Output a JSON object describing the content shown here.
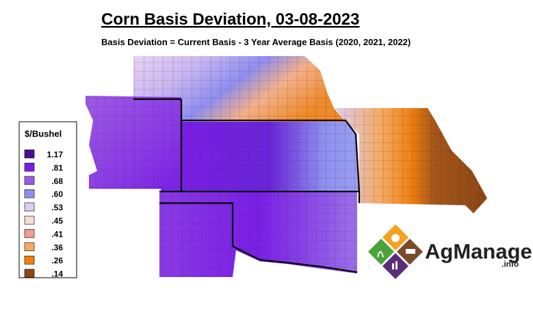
{
  "title": "Corn Basis Deviation, 03-08-2023",
  "subtitle": "Basis Deviation = Current Basis - 3 Year Average Basis (2020, 2021, 2022)",
  "legend": {
    "title": "$/Bushel",
    "items": [
      {
        "label": "1.17",
        "color": "#4b0e92"
      },
      {
        "label": ".81",
        "color": "#7a1ee6"
      },
      {
        "label": ".68",
        "color": "#9d5ae4"
      },
      {
        "label": ".60",
        "color": "#8e90f0"
      },
      {
        "label": ".53",
        "color": "#dcccf4"
      },
      {
        "label": ".45",
        "color": "#f6ddd2"
      },
      {
        "label": ".41",
        "color": "#f09e92"
      },
      {
        "label": ".36",
        "color": "#f5aa62"
      },
      {
        "label": ".26",
        "color": "#f08012"
      },
      {
        "label": ".14",
        "color": "#8c4714"
      }
    ]
  },
  "logo": {
    "name": "AgManager",
    "suffix": ".info"
  }
}
